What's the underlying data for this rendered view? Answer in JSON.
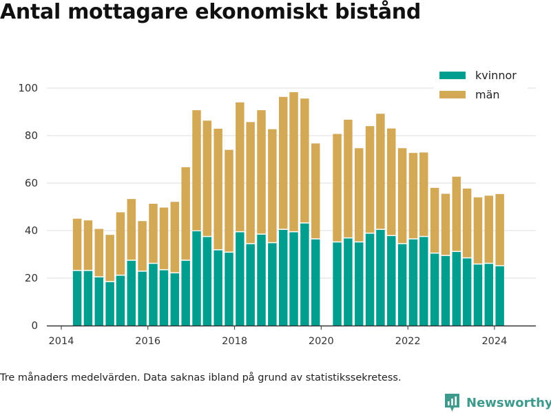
{
  "title": "Antal mottagare ekonomiskt bistånd",
  "footnote": "Tre månaders medelvärden. Data saknas ibland på grund av statistikssekretess.",
  "brand": "Newsworthy",
  "colors": {
    "kvinnor": "#009e8f",
    "man": "#d4a955",
    "grid": "#dddddd",
    "axis": "#333333",
    "brand": "#3d9a8c"
  },
  "chart_data": {
    "type": "bar",
    "stacked": true,
    "grid": true,
    "legend_position": "top-right",
    "xlim": [
      "2013-09-01",
      "2024-12-15"
    ],
    "ylim": [
      0,
      110
    ],
    "x_ticks": [
      "2014",
      "2016",
      "2018",
      "2020",
      "2022",
      "2024"
    ],
    "y_ticks": [
      "0",
      "20",
      "40",
      "60",
      "80",
      "100"
    ],
    "x": [
      "2014-05",
      "2014-08",
      "2014-11",
      "2015-02",
      "2015-05",
      "2015-08",
      "2015-11",
      "2016-02",
      "2016-05",
      "2016-08",
      "2016-11",
      "2017-02",
      "2017-05",
      "2017-08",
      "2017-11",
      "2018-02",
      "2018-05",
      "2018-08",
      "2018-11",
      "2019-02",
      "2019-05",
      "2019-08",
      "2019-11",
      "2020-02",
      "2020-05",
      "2020-08",
      "2020-11",
      "2021-02",
      "2021-05",
      "2021-08",
      "2021-11",
      "2022-02",
      "2022-05",
      "2022-08",
      "2022-11",
      "2023-02",
      "2023-05",
      "2023-08",
      "2023-11",
      "2024-02"
    ],
    "series": [
      {
        "name": "kvinnor",
        "values": [
          23,
          23,
          20.3,
          18.3,
          21,
          27.3,
          22.7,
          26,
          23.3,
          22,
          27.3,
          39.7,
          37.3,
          31.7,
          30.7,
          39.3,
          34.3,
          38.3,
          34.7,
          40.3,
          39.3,
          43,
          36.3,
          null,
          35,
          36.7,
          35,
          38.7,
          40.3,
          37.7,
          34.3,
          36.3,
          37.3,
          30.3,
          29.3,
          31,
          28.3,
          25.7,
          26,
          25
        ]
      },
      {
        "name": "män",
        "values": [
          22,
          21.3,
          20.4,
          19.9,
          26.7,
          26,
          21.3,
          25.3,
          26.4,
          30.1,
          39.4,
          51,
          49,
          51.2,
          43.3,
          54.7,
          51.4,
          52.4,
          48,
          56,
          59,
          52.6,
          40.4,
          null,
          45.7,
          50,
          39.7,
          45.3,
          48.9,
          45.3,
          40.4,
          36.4,
          35.6,
          27.7,
          26.2,
          31.7,
          29.4,
          28.3,
          28.7,
          30.4
        ]
      }
    ]
  }
}
